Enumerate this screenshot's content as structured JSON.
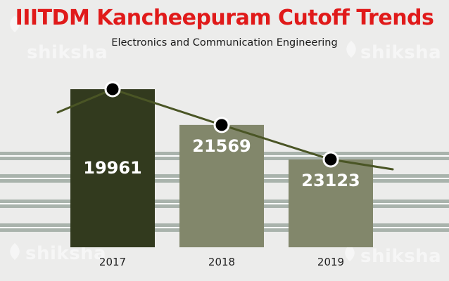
{
  "colors": {
    "background": "#ececeb",
    "title": "#e01a1a",
    "bar_2017": "#323a1e",
    "bar_other": "#82876b",
    "trend_line": "#4a5525",
    "marker": "#000000",
    "marker_ring": "#ffffff",
    "grid_fill": "#a9b3ac",
    "grid_line": "#ffffff"
  },
  "watermark": {
    "text": "shiksha",
    "icon": "shiksha-logo-icon"
  },
  "chart_data": {
    "type": "bar",
    "title": "IIITDM Kancheepuram Cutoff Trends",
    "subtitle": "Electronics and Communication Engineering",
    "xlabel": "",
    "ylabel": "",
    "categories": [
      "2017",
      "2018",
      "2019"
    ],
    "values": [
      19961,
      21569,
      23123
    ],
    "data_labels": [
      "19961",
      "21569",
      "23123"
    ],
    "y_axis_reversed": true,
    "trend_line": {
      "style": "line with circular markers",
      "through": "bar tops"
    },
    "grid": true,
    "legend": "none"
  }
}
